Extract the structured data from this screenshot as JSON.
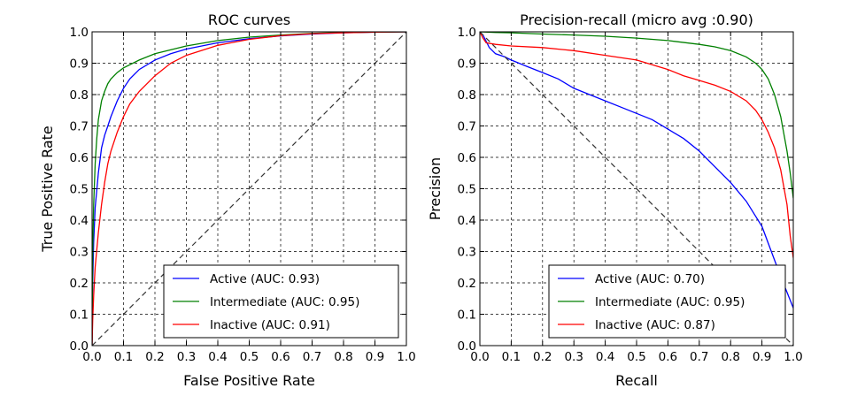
{
  "chart_data": [
    {
      "type": "line",
      "title": "ROC curves",
      "xlabel": "False Positive Rate",
      "ylabel": "True Positive Rate",
      "xlim": [
        0,
        1
      ],
      "ylim": [
        0,
        1
      ],
      "xticks": [
        "0.0",
        "0.1",
        "0.2",
        "0.3",
        "0.4",
        "0.5",
        "0.6",
        "0.7",
        "0.8",
        "0.9",
        "1.0"
      ],
      "yticks": [
        "0.0",
        "0.1",
        "0.2",
        "0.3",
        "0.4",
        "0.5",
        "0.6",
        "0.7",
        "0.8",
        "0.9",
        "1.0"
      ],
      "grid": true,
      "legend_position": "lower-right",
      "series": [
        {
          "name": "Active (AUC: 0.93)",
          "color": "#0000ff",
          "x": [
            0,
            0.002,
            0.005,
            0.01,
            0.02,
            0.03,
            0.04,
            0.05,
            0.06,
            0.08,
            0.1,
            0.12,
            0.15,
            0.2,
            0.25,
            0.3,
            0.4,
            0.5,
            0.6,
            0.7,
            0.8,
            0.9,
            1.0
          ],
          "y": [
            0,
            0.2,
            0.33,
            0.44,
            0.55,
            0.63,
            0.67,
            0.7,
            0.73,
            0.78,
            0.82,
            0.85,
            0.88,
            0.91,
            0.93,
            0.945,
            0.965,
            0.978,
            0.987,
            0.993,
            0.997,
            0.999,
            1.0
          ]
        },
        {
          "name": "Intermediate (AUC: 0.95)",
          "color": "#008000",
          "x": [
            0,
            0.002,
            0.005,
            0.01,
            0.015,
            0.02,
            0.03,
            0.04,
            0.05,
            0.06,
            0.08,
            0.1,
            0.15,
            0.2,
            0.3,
            0.4,
            0.5,
            0.6,
            0.7,
            0.8,
            0.9,
            1.0
          ],
          "y": [
            0,
            0.3,
            0.45,
            0.58,
            0.66,
            0.72,
            0.78,
            0.81,
            0.835,
            0.85,
            0.87,
            0.885,
            0.91,
            0.93,
            0.955,
            0.972,
            0.983,
            0.99,
            0.995,
            0.998,
            0.999,
            1.0
          ]
        },
        {
          "name": "Inactive (AUC: 0.91)",
          "color": "#ff0000",
          "x": [
            0,
            0.002,
            0.005,
            0.01,
            0.02,
            0.03,
            0.04,
            0.05,
            0.06,
            0.08,
            0.1,
            0.12,
            0.15,
            0.2,
            0.25,
            0.3,
            0.4,
            0.5,
            0.6,
            0.7,
            0.8,
            0.9,
            1.0
          ],
          "y": [
            0,
            0.08,
            0.16,
            0.25,
            0.36,
            0.45,
            0.52,
            0.58,
            0.62,
            0.68,
            0.73,
            0.77,
            0.81,
            0.86,
            0.9,
            0.925,
            0.957,
            0.976,
            0.988,
            0.994,
            0.997,
            0.999,
            1.0
          ]
        },
        {
          "name": "",
          "color": "#333333",
          "dashed": true,
          "x": [
            0,
            1
          ],
          "y": [
            0,
            1
          ]
        }
      ]
    },
    {
      "type": "line",
      "title": "Precision-recall (micro avg :0.90)",
      "xlabel": "Recall",
      "ylabel": "Precision",
      "xlim": [
        0,
        1
      ],
      "ylim": [
        0,
        1
      ],
      "xticks": [
        "0.0",
        "0.1",
        "0.2",
        "0.3",
        "0.4",
        "0.5",
        "0.6",
        "0.7",
        "0.8",
        "0.9",
        "1.0"
      ],
      "yticks": [
        "0.0",
        "0.1",
        "0.2",
        "0.3",
        "0.4",
        "0.5",
        "0.6",
        "0.7",
        "0.8",
        "0.9",
        "1.0"
      ],
      "grid": true,
      "legend_position": "lower-center",
      "series": [
        {
          "name": "Active (AUC: 0.70)",
          "color": "#0000ff",
          "x": [
            0,
            0.01,
            0.02,
            0.03,
            0.05,
            0.08,
            0.1,
            0.15,
            0.2,
            0.25,
            0.3,
            0.35,
            0.4,
            0.45,
            0.5,
            0.55,
            0.6,
            0.65,
            0.7,
            0.75,
            0.8,
            0.85,
            0.9,
            0.93,
            0.96,
            1.0
          ],
          "y": [
            1.0,
            0.99,
            0.97,
            0.95,
            0.93,
            0.92,
            0.91,
            0.89,
            0.87,
            0.85,
            0.82,
            0.8,
            0.78,
            0.76,
            0.74,
            0.72,
            0.69,
            0.66,
            0.62,
            0.57,
            0.52,
            0.46,
            0.38,
            0.3,
            0.22,
            0.12
          ]
        },
        {
          "name": "Intermediate (AUC: 0.95)",
          "color": "#008000",
          "x": [
            0,
            0.05,
            0.1,
            0.2,
            0.3,
            0.4,
            0.5,
            0.6,
            0.7,
            0.75,
            0.8,
            0.85,
            0.88,
            0.9,
            0.92,
            0.94,
            0.96,
            0.98,
            0.99,
            1.0
          ],
          "y": [
            1.0,
            0.998,
            0.997,
            0.993,
            0.99,
            0.986,
            0.98,
            0.972,
            0.96,
            0.952,
            0.94,
            0.92,
            0.9,
            0.88,
            0.85,
            0.8,
            0.73,
            0.62,
            0.55,
            0.47
          ]
        },
        {
          "name": "Inactive (AUC: 0.87)",
          "color": "#ff0000",
          "x": [
            0,
            0.01,
            0.02,
            0.05,
            0.1,
            0.2,
            0.3,
            0.4,
            0.5,
            0.55,
            0.6,
            0.65,
            0.7,
            0.75,
            0.8,
            0.85,
            0.88,
            0.9,
            0.92,
            0.94,
            0.96,
            0.98,
            0.99,
            1.0
          ],
          "y": [
            1.0,
            0.98,
            0.965,
            0.96,
            0.955,
            0.95,
            0.94,
            0.925,
            0.91,
            0.895,
            0.88,
            0.86,
            0.845,
            0.83,
            0.81,
            0.78,
            0.75,
            0.72,
            0.68,
            0.63,
            0.56,
            0.45,
            0.35,
            0.28
          ]
        },
        {
          "name": "",
          "color": "#333333",
          "dashed": true,
          "x": [
            0,
            1
          ],
          "y": [
            1,
            0
          ]
        }
      ]
    }
  ]
}
